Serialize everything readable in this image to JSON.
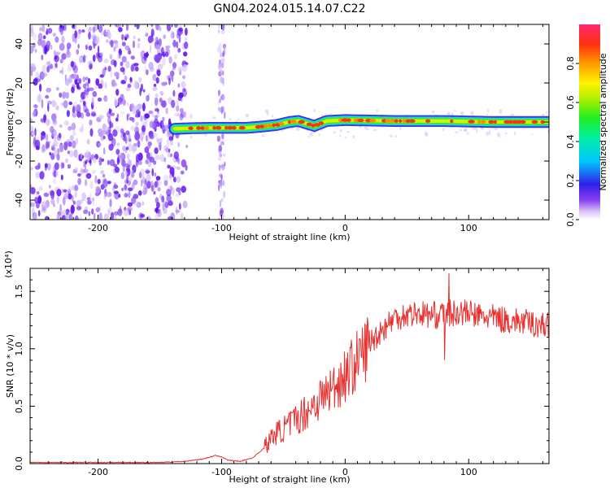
{
  "title": "GN04.2024.015.14.07.C22",
  "chart_data": [
    {
      "type": "heatmap",
      "xlabel": "Height of straight line (km)",
      "ylabel": "Frequency (Hz)",
      "xlim": [
        -255,
        165
      ],
      "ylim": [
        -50,
        50
      ],
      "xticks": [
        -200,
        -100,
        0,
        100
      ],
      "yticks": [
        -40,
        -20,
        0,
        20,
        40
      ],
      "colorbar": {
        "label": "Normalized spectral amplitude",
        "range": [
          0.0,
          1.0
        ],
        "ticks": [
          0.0,
          0.2,
          0.4,
          0.6,
          0.8
        ]
      },
      "ridge": {
        "x": [
          -138,
          -125,
          -110,
          -100,
          -80,
          -70,
          -55,
          -45,
          -38,
          -30,
          -25,
          -15,
          0,
          40,
          80,
          120,
          165
        ],
        "y": [
          -3.5,
          -3.2,
          -3,
          -3,
          -3,
          -2.5,
          -1.5,
          0,
          0.5,
          -1,
          -2,
          0.5,
          1,
          0.5,
          0.5,
          0,
          0
        ]
      }
    },
    {
      "type": "line",
      "xlabel": "Height of straight line (km)",
      "ylabel": "SNR (10 * v/v)",
      "yscale_label": "(x10⁴)",
      "xlim": [
        -255,
        165
      ],
      "ylim": [
        0,
        1.7
      ],
      "xticks": [
        -200,
        -100,
        0,
        100
      ],
      "yticks": [
        0.0,
        0.5,
        1.0,
        1.5
      ],
      "color": "#e8312f",
      "series": [
        {
          "x": [
            -255,
            -200,
            -150,
            -130,
            -115,
            -105,
            -100,
            -95,
            -85,
            -75,
            -65,
            -58,
            -50,
            -40,
            -30,
            -20,
            -10,
            0,
            10,
            20,
            30,
            40,
            50,
            60,
            70,
            80,
            90,
            100,
            110,
            120,
            130,
            140,
            150,
            160,
            165
          ],
          "values": [
            0.01,
            0.01,
            0.01,
            0.02,
            0.04,
            0.07,
            0.06,
            0.03,
            0.02,
            0.05,
            0.14,
            0.25,
            0.3,
            0.38,
            0.47,
            0.57,
            0.66,
            0.77,
            0.9,
            1.05,
            1.17,
            1.27,
            1.3,
            1.31,
            1.29,
            1.3,
            1.32,
            1.31,
            1.28,
            1.27,
            1.25,
            1.24,
            1.22,
            1.21,
            1.2
          ]
        }
      ]
    }
  ]
}
